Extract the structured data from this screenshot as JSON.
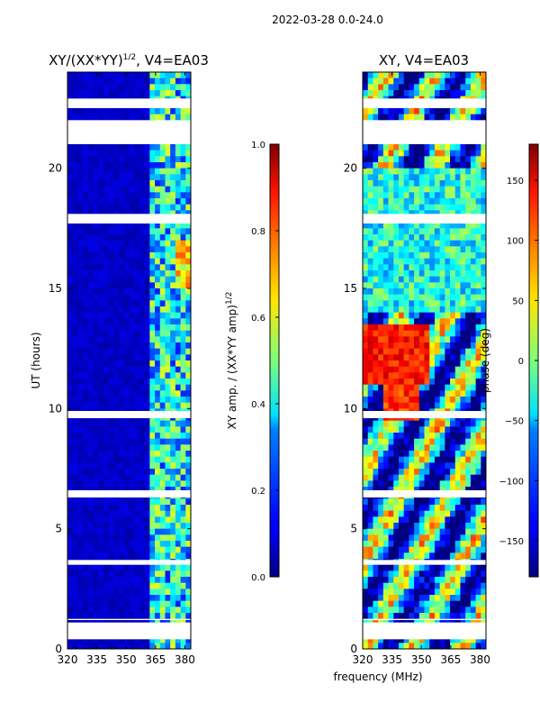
{
  "figure_title": "2022-03-28 0.0-24.0",
  "shared_xlabel": "frequency (MHz)",
  "chart_data": [
    {
      "type": "heatmap",
      "title_main": "XY/(XX*YY)",
      "title_sup": "1/2",
      "title_tail": ", V4=EA03",
      "xlabel": "",
      "ylabel": "UT (hours)",
      "xlim": [
        320,
        383
      ],
      "ylim": [
        0,
        24
      ],
      "xticks": [
        320,
        335,
        350,
        365,
        380
      ],
      "yticks": [
        0,
        5,
        10,
        15,
        20
      ],
      "colorbar": {
        "label_main": "XY amp. / (XX*YY amp)",
        "label_sup": "1/2",
        "range": [
          0.0,
          1.0
        ],
        "ticks": [
          "0.0",
          "0.2",
          "0.4",
          "0.6",
          "0.8",
          "1.0"
        ],
        "tick_values": [
          0.0,
          0.2,
          0.4,
          0.6,
          0.8,
          1.0
        ]
      },
      "gap_intervals_hours": [
        [
          0.4,
          1.1
        ],
        [
          1.2,
          1.25
        ],
        [
          3.5,
          3.7
        ],
        [
          6.3,
          6.6
        ],
        [
          9.6,
          9.9
        ],
        [
          17.7,
          18.1
        ],
        [
          21.0,
          22.0
        ],
        [
          22.5,
          22.9
        ]
      ]
    },
    {
      "type": "heatmap",
      "title_main": "XY, V4=EA03",
      "xlabel": "frequency (MHz)",
      "ylabel": "",
      "xlim": [
        320,
        383
      ],
      "ylim": [
        0,
        24
      ],
      "xticks": [
        320,
        335,
        350,
        365,
        380
      ],
      "yticks": [
        0,
        5,
        10,
        15,
        20
      ],
      "colorbar": {
        "label_main": "phase (deg)",
        "range": [
          -180,
          180
        ],
        "ticks": [
          "−150",
          "−100",
          "−50",
          "0",
          "50",
          "100",
          "150"
        ],
        "tick_values": [
          -150,
          -100,
          -50,
          0,
          50,
          100,
          150
        ]
      },
      "gap_intervals_hours": [
        [
          0.4,
          1.1
        ],
        [
          1.2,
          1.25
        ],
        [
          3.5,
          3.7
        ],
        [
          6.3,
          6.6
        ],
        [
          9.6,
          9.9
        ],
        [
          17.7,
          18.1
        ],
        [
          21.0,
          22.0
        ],
        [
          22.5,
          22.9
        ]
      ]
    }
  ],
  "colors": {
    "axis": "#000000",
    "gap": "#ffffff",
    "low": "#00008f",
    "high": "#7f0000"
  }
}
